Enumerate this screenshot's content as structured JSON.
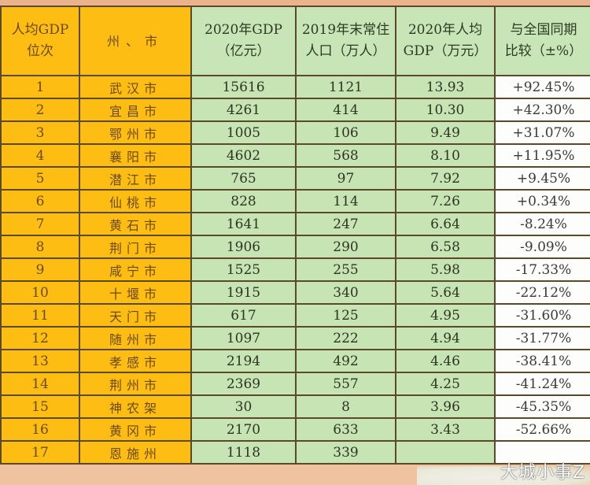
{
  "table": {
    "headers": [
      {
        "line1": "人均GDP",
        "line2": "位次"
      },
      {
        "line1": "州、市",
        "line2": ""
      },
      {
        "line1": "2020年GDP",
        "line2": "（亿元）"
      },
      {
        "line1": "2019年末常住",
        "line2": "人口（万人）"
      },
      {
        "line1": "2020年人均",
        "line2": "GDP（万元）"
      },
      {
        "line1": "与全国同期",
        "line2": "比较（±%）"
      }
    ],
    "rows": [
      {
        "rank": "1",
        "city": "武汉市",
        "gdp": "15616",
        "population": "1121",
        "gdp_per_capita": "13.93",
        "vs_national": "+92.45%"
      },
      {
        "rank": "2",
        "city": "宜昌市",
        "gdp": "4261",
        "population": "414",
        "gdp_per_capita": "10.30",
        "vs_national": "+42.30%"
      },
      {
        "rank": "3",
        "city": "鄂州市",
        "gdp": "1005",
        "population": "106",
        "gdp_per_capita": "9.49",
        "vs_national": "+31.07%"
      },
      {
        "rank": "4",
        "city": "襄阳市",
        "gdp": "4602",
        "population": "568",
        "gdp_per_capita": "8.10",
        "vs_national": "+11.95%"
      },
      {
        "rank": "5",
        "city": "潜江市",
        "gdp": "765",
        "population": "97",
        "gdp_per_capita": "7.92",
        "vs_national": "+9.45%"
      },
      {
        "rank": "6",
        "city": "仙桃市",
        "gdp": "828",
        "population": "114",
        "gdp_per_capita": "7.26",
        "vs_national": "+0.34%"
      },
      {
        "rank": "7",
        "city": "黄石市",
        "gdp": "1641",
        "population": "247",
        "gdp_per_capita": "6.64",
        "vs_national": "-8.24%"
      },
      {
        "rank": "8",
        "city": "荆门市",
        "gdp": "1906",
        "population": "290",
        "gdp_per_capita": "6.58",
        "vs_national": "-9.09%"
      },
      {
        "rank": "9",
        "city": "咸宁市",
        "gdp": "1525",
        "population": "255",
        "gdp_per_capita": "5.98",
        "vs_national": "-17.33%"
      },
      {
        "rank": "10",
        "city": "十堰市",
        "gdp": "1915",
        "population": "340",
        "gdp_per_capita": "5.64",
        "vs_national": "-22.12%"
      },
      {
        "rank": "11",
        "city": "天门市",
        "gdp": "617",
        "population": "125",
        "gdp_per_capita": "4.95",
        "vs_national": "-31.60%"
      },
      {
        "rank": "12",
        "city": "随州市",
        "gdp": "1097",
        "population": "222",
        "gdp_per_capita": "4.94",
        "vs_national": "-31.77%"
      },
      {
        "rank": "13",
        "city": "孝感市",
        "gdp": "2194",
        "population": "492",
        "gdp_per_capita": "4.46",
        "vs_national": "-38.41%"
      },
      {
        "rank": "14",
        "city": "荆州市",
        "gdp": "2369",
        "population": "557",
        "gdp_per_capita": "4.25",
        "vs_national": "-41.24%"
      },
      {
        "rank": "15",
        "city": "神农架",
        "gdp": "30",
        "population": "8",
        "gdp_per_capita": "3.96",
        "vs_national": "-45.35%"
      },
      {
        "rank": "16",
        "city": "黄冈市",
        "gdp": "2170",
        "population": "633",
        "gdp_per_capita": "3.43",
        "vs_national": "-52.66%"
      },
      {
        "rank": "17",
        "city": "恩施州",
        "gdp": "1118",
        "population": "339",
        "gdp_per_capita": "",
        "vs_national": ""
      }
    ]
  },
  "watermark": "大城小事Z",
  "colors": {
    "rank_city_bg": "#fdbd13",
    "numeric_bg": "#c7e4b5",
    "compare_bg": "#fdfefb",
    "border": "#5a4a2a",
    "top_strip": "#ebb48e"
  }
}
